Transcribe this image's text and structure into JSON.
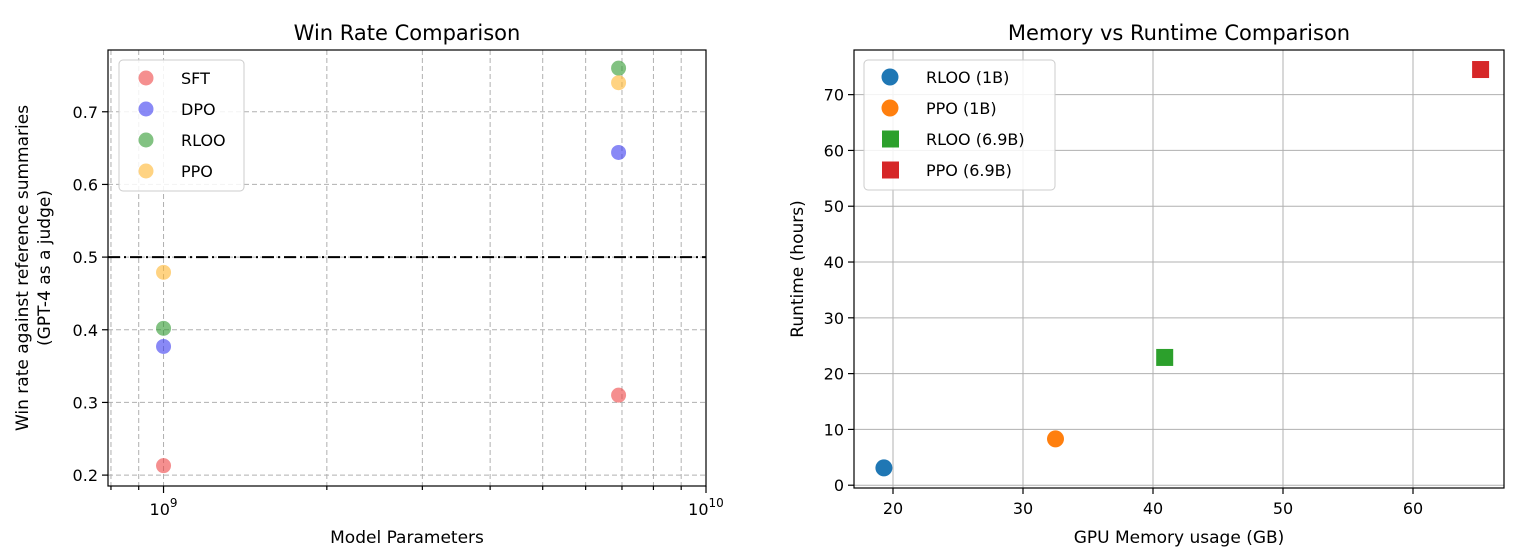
{
  "chart_data": [
    {
      "type": "scatter",
      "title": "Win Rate Comparison",
      "xlabel": "Model Parameters",
      "ylabel_lines": [
        "Win rate against reference summaries",
        "(GPT-4 as a judge)"
      ],
      "xscale": "log",
      "xlim": [
        790000000,
        10000000000
      ],
      "ylim": [
        0.185,
        0.785
      ],
      "xticks": [
        {
          "value": 1000000000,
          "base": "10",
          "exp": "9"
        },
        {
          "value": 10000000000,
          "base": "10",
          "exp": "10"
        }
      ],
      "yticks": [
        0.2,
        0.3,
        0.4,
        0.5,
        0.6,
        0.7
      ],
      "ytick_labels": [
        "0.2",
        "0.3",
        "0.4",
        "0.5",
        "0.6",
        "0.7"
      ],
      "grid": true,
      "legend_position": "upper left",
      "reference_line": {
        "y": 0.5,
        "style": "dash-dot",
        "color": "#000000"
      },
      "series": [
        {
          "name": "SFT",
          "color": "#ef4444",
          "points": [
            {
              "x": 1000000000,
              "y": 0.213
            },
            {
              "x": 6900000000,
              "y": 0.31
            }
          ]
        },
        {
          "name": "DPO",
          "color": "#3b3bf0",
          "points": [
            {
              "x": 1000000000,
              "y": 0.377
            },
            {
              "x": 6900000000,
              "y": 0.644
            }
          ]
        },
        {
          "name": "RLOO",
          "color": "#2f9a2f",
          "points": [
            {
              "x": 1000000000,
              "y": 0.402
            },
            {
              "x": 6900000000,
              "y": 0.76
            }
          ]
        },
        {
          "name": "PPO",
          "color": "#ffb52e",
          "points": [
            {
              "x": 1000000000,
              "y": 0.479
            },
            {
              "x": 6900000000,
              "y": 0.74
            }
          ]
        }
      ]
    },
    {
      "type": "scatter",
      "title": "Memory vs Runtime Comparison",
      "xlabel": "GPU Memory usage (GB)",
      "ylabel": "Runtime (hours)",
      "xlim": [
        17,
        67
      ],
      "ylim": [
        -0.5,
        78
      ],
      "xticks": [
        20,
        30,
        40,
        50,
        60
      ],
      "yticks": [
        0,
        10,
        20,
        30,
        40,
        50,
        60,
        70
      ],
      "grid": true,
      "legend_position": "upper left",
      "series": [
        {
          "name": "RLOO (1B)",
          "color": "#1f77b4",
          "marker": "circle",
          "points": [
            {
              "x": 19.3,
              "y": 3.1
            }
          ]
        },
        {
          "name": "PPO (1B)",
          "color": "#ff7f0e",
          "marker": "circle",
          "points": [
            {
              "x": 32.5,
              "y": 8.3
            }
          ]
        },
        {
          "name": "RLOO (6.9B)",
          "color": "#2ca02c",
          "marker": "square",
          "points": [
            {
              "x": 40.9,
              "y": 22.9
            }
          ]
        },
        {
          "name": "PPO (6.9B)",
          "color": "#d62728",
          "marker": "square",
          "points": [
            {
              "x": 65.2,
              "y": 74.5
            }
          ]
        }
      ]
    }
  ]
}
